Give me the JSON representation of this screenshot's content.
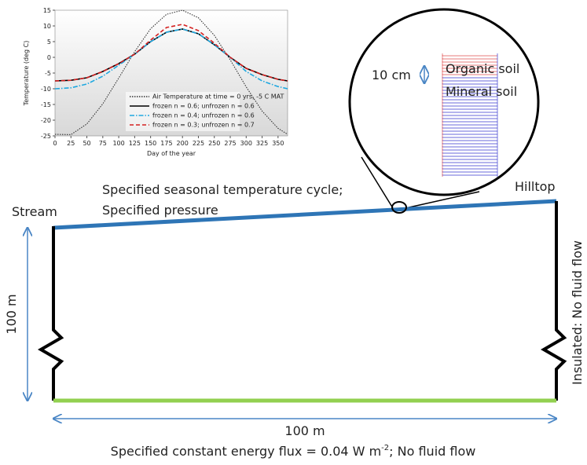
{
  "chart_data": {
    "type": "line",
    "xlabel": "Day of the year",
    "ylabel": "Temperature (deg C)",
    "x": [
      0,
      25,
      50,
      75,
      100,
      125,
      150,
      175,
      200,
      225,
      250,
      275,
      300,
      325,
      350,
      365
    ],
    "xlim": [
      0,
      365
    ],
    "xticks": [
      0,
      25,
      50,
      75,
      100,
      125,
      150,
      175,
      200,
      225,
      250,
      275,
      300,
      325,
      350
    ],
    "ylim": [
      -25,
      15
    ],
    "yticks": [
      -25,
      -20,
      -15,
      -10,
      -5,
      0,
      5,
      10,
      15
    ],
    "series": [
      {
        "name": "Air Temperature at time = 0 yrs, -5 C MAT",
        "color": "#333333",
        "dash": "dotted",
        "values": [
          -24.5,
          -24.6,
          -21.2,
          -14.8,
          -6.6,
          1.8,
          9.1,
          13.7,
          15,
          12.6,
          7,
          -0.8,
          -9.4,
          -17.1,
          -22.6,
          -24.5
        ]
      },
      {
        "name": "frozen n = 0.6; unfrozen n = 0.6",
        "color": "#000000",
        "dash": "solid",
        "values": [
          -7.5,
          -7.3,
          -6.5,
          -4.5,
          -2,
          1,
          5,
          8,
          9,
          7.5,
          4,
          0,
          -3.5,
          -5.5,
          -7,
          -7.5
        ]
      },
      {
        "name": "frozen n = 0.4; unfrozen n = 0.6",
        "color": "#1fa8e0",
        "dash": "dashdot",
        "values": [
          -10,
          -9.7,
          -8.5,
          -6,
          -2.5,
          1,
          5,
          8,
          9,
          7.5,
          4,
          0,
          -4.5,
          -7.5,
          -9.3,
          -10
        ]
      },
      {
        "name": "frozen n = 0.3; unfrozen n = 0.7",
        "color": "#d42020",
        "dash": "dashed",
        "values": [
          -7.5,
          -7.3,
          -6.5,
          -4.5,
          -2,
          1,
          5.5,
          9.5,
          10.5,
          8.5,
          4.5,
          0,
          -3.5,
          -5.5,
          -7,
          -7.5
        ]
      }
    ]
  },
  "diagram": {
    "top_label_1": "Specified seasonal temperature cycle;",
    "top_label_2": "Specified pressure",
    "stream": "Stream",
    "hilltop": "Hilltop",
    "height": "100 m",
    "width": "100 m",
    "right_label": "Insulated: No fluid flow",
    "bottom_label": [
      "Specified constant energy flux = 0.04 W m",
      "-2",
      "; No fluid flow"
    ],
    "zoom": {
      "thickness": "10 cm",
      "organic": "Organic soil",
      "mineral": "Mineral soil"
    }
  }
}
